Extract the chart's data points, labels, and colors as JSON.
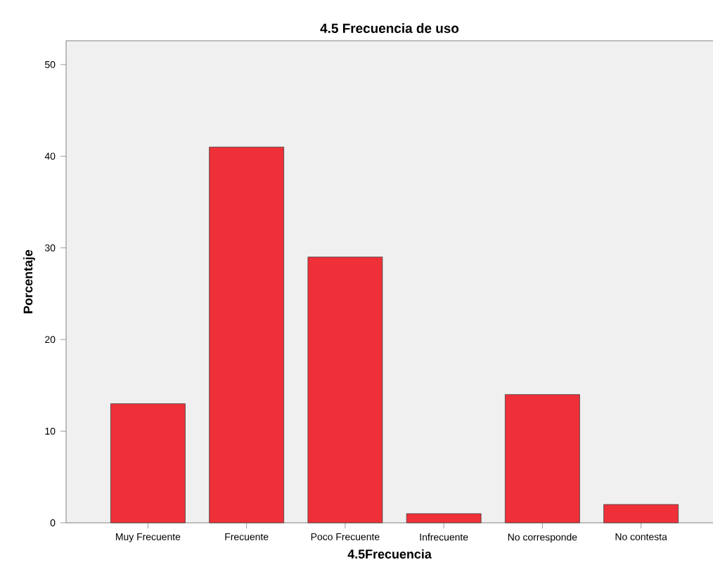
{
  "chart_data": {
    "type": "bar",
    "title": "4.5 Frecuencia de uso",
    "xlabel": "4.5Frecuencia",
    "ylabel": "Porcentaje",
    "categories": [
      "Muy Frecuente",
      "Frecuente",
      "Poco Frecuente",
      "Infrecuente",
      "No corresponde",
      "No contesta"
    ],
    "values": [
      13,
      41,
      29,
      1,
      14,
      2
    ],
    "color": "#ef3038",
    "ylim": [
      0,
      52.6
    ],
    "yticks": [
      0,
      10,
      20,
      30,
      40,
      50
    ],
    "grid": false
  }
}
